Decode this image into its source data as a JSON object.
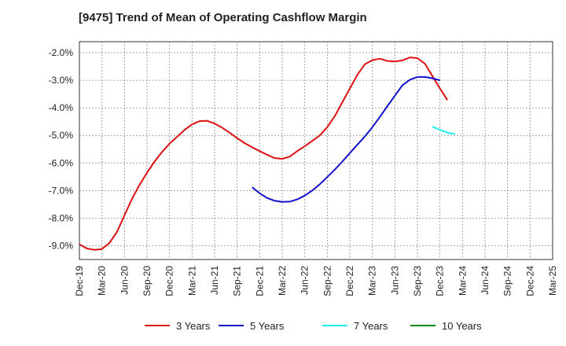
{
  "chart_data": {
    "type": "line",
    "title": "[9475]  Trend of Mean of Operating Cashflow Margin",
    "xlabel": "",
    "ylabel": "",
    "ylim": [
      -9.5,
      -1.6
    ],
    "y_ticks": [
      -2.0,
      -3.0,
      -4.0,
      -5.0,
      -6.0,
      -7.0,
      -8.0,
      -9.0
    ],
    "y_tick_labels": [
      "-2.0%",
      "-3.0%",
      "-4.0%",
      "-5.0%",
      "-6.0%",
      "-7.0%",
      "-8.0%",
      "-9.0%"
    ],
    "x_tick_labels": [
      "Dec-19",
      "Mar-20",
      "Jun-20",
      "Sep-20",
      "Dec-20",
      "Mar-21",
      "Jun-21",
      "Sep-21",
      "Dec-21",
      "Mar-22",
      "Jun-22",
      "Sep-22",
      "Dec-22",
      "Mar-23",
      "Jun-23",
      "Sep-23",
      "Dec-23",
      "Mar-24",
      "Jun-24",
      "Sep-24",
      "Dec-24",
      "Mar-25"
    ],
    "grid": true,
    "legend_position": "bottom",
    "series": [
      {
        "name": "3 Years",
        "color": "#dd1111",
        "start": "Dec-19",
        "values": [
          -8.95,
          -9.1,
          -9.15,
          -9.12,
          -8.9,
          -8.5,
          -7.9,
          -7.3,
          -6.8,
          -6.35,
          -5.95,
          -5.6,
          -5.3,
          -5.05,
          -4.8,
          -4.6,
          -4.48,
          -4.47,
          -4.57,
          -4.72,
          -4.9,
          -5.1,
          -5.28,
          -5.43,
          -5.57,
          -5.7,
          -5.82,
          -5.85,
          -5.77,
          -5.57,
          -5.39,
          -5.2,
          -5.0,
          -4.7,
          -4.3,
          -3.8,
          -3.3,
          -2.8,
          -2.42,
          -2.27,
          -2.22,
          -2.3,
          -2.32,
          -2.28,
          -2.17,
          -2.2,
          -2.4,
          -2.85,
          -3.3,
          -3.72
        ]
      },
      {
        "name": "5 Years",
        "color": "#1111cc",
        "start": "Nov-21",
        "values": [
          -6.88,
          -7.1,
          -7.27,
          -7.37,
          -7.41,
          -7.4,
          -7.32,
          -7.18,
          -7.0,
          -6.77,
          -6.51,
          -6.24,
          -5.95,
          -5.64,
          -5.34,
          -5.04,
          -4.7,
          -4.33,
          -3.94,
          -3.56,
          -3.18,
          -2.98,
          -2.88,
          -2.88,
          -2.93,
          -3.0
        ]
      },
      {
        "name": "7 Years",
        "color": "#22eeee",
        "start": "Nov-23",
        "values": [
          -4.68,
          -4.8,
          -4.9,
          -4.95
        ]
      },
      {
        "name": "10 Years",
        "color": "#118811",
        "start": "",
        "values": []
      }
    ]
  }
}
